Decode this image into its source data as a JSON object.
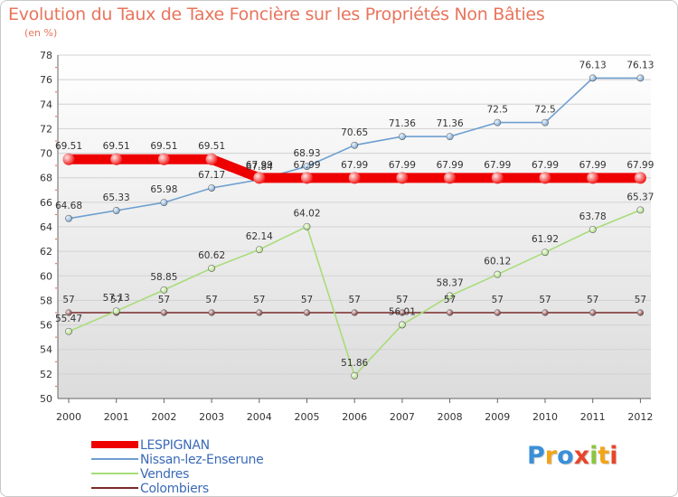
{
  "chart_data": {
    "type": "line",
    "title": "Evolution du Taux de Taxe Foncière sur les Propriétés Non Bâties",
    "ylabel": "(en %)",
    "xlabel": "",
    "ylim": [
      50,
      78
    ],
    "yticks": [
      "50",
      "52",
      "54",
      "56",
      "58",
      "60",
      "62",
      "64",
      "66",
      "68",
      "70",
      "72",
      "74",
      "76",
      "78"
    ],
    "categories": [
      "2000",
      "2001",
      "2002",
      "2003",
      "2004",
      "2005",
      "2006",
      "2007",
      "2008",
      "2009",
      "2010",
      "2011",
      "2012"
    ],
    "grid": "horizontal",
    "legend_position": "bottom-left",
    "series": [
      {
        "name": "LESPIGNAN",
        "color": "#ee0000",
        "values": [
          69.51,
          69.51,
          69.51,
          69.51,
          67.99,
          67.99,
          67.99,
          67.99,
          67.99,
          67.99,
          67.99,
          67.99,
          67.99
        ],
        "labels": [
          "69.51",
          "69.51",
          "69.51",
          "69.51",
          "67.99",
          "67.99",
          "67.99",
          "67.99",
          "67.99",
          "67.99",
          "67.99",
          "67.99",
          "67.99"
        ]
      },
      {
        "name": "Nissan-lez-Enserune",
        "color": "#6e9fd0",
        "values": [
          64.68,
          65.33,
          65.98,
          67.17,
          67.84,
          68.93,
          70.65,
          71.36,
          71.36,
          72.5,
          72.5,
          76.13,
          76.13
        ],
        "labels": [
          "64.68",
          "65.33",
          "65.98",
          "67.17",
          "67.84",
          "68.93",
          "70.65",
          "71.36",
          "71.36",
          "72.5",
          "72.5",
          "76.13",
          "76.13"
        ]
      },
      {
        "name": "Vendres",
        "color": "#a8dc78",
        "values": [
          55.47,
          57.13,
          58.85,
          60.62,
          62.14,
          64.02,
          51.86,
          56.01,
          58.37,
          60.12,
          61.92,
          63.78,
          65.37
        ],
        "labels": [
          "55.47",
          "57.13",
          "58.85",
          "60.62",
          "62.14",
          "64.02",
          "51.86",
          "56.01",
          "58.37",
          "60.12",
          "61.92",
          "63.78",
          "65.37"
        ]
      },
      {
        "name": "Colombiers",
        "color": "#7a2a2a",
        "values": [
          57,
          57,
          57,
          57,
          57,
          57,
          57,
          57,
          57,
          57,
          57,
          57,
          57
        ],
        "labels": [
          "57",
          "57",
          "57",
          "57",
          "57",
          "57",
          "57",
          "57",
          "57",
          "57",
          "57",
          "57",
          "57"
        ]
      }
    ]
  },
  "branding": {
    "logo_text": "Proxiti"
  }
}
